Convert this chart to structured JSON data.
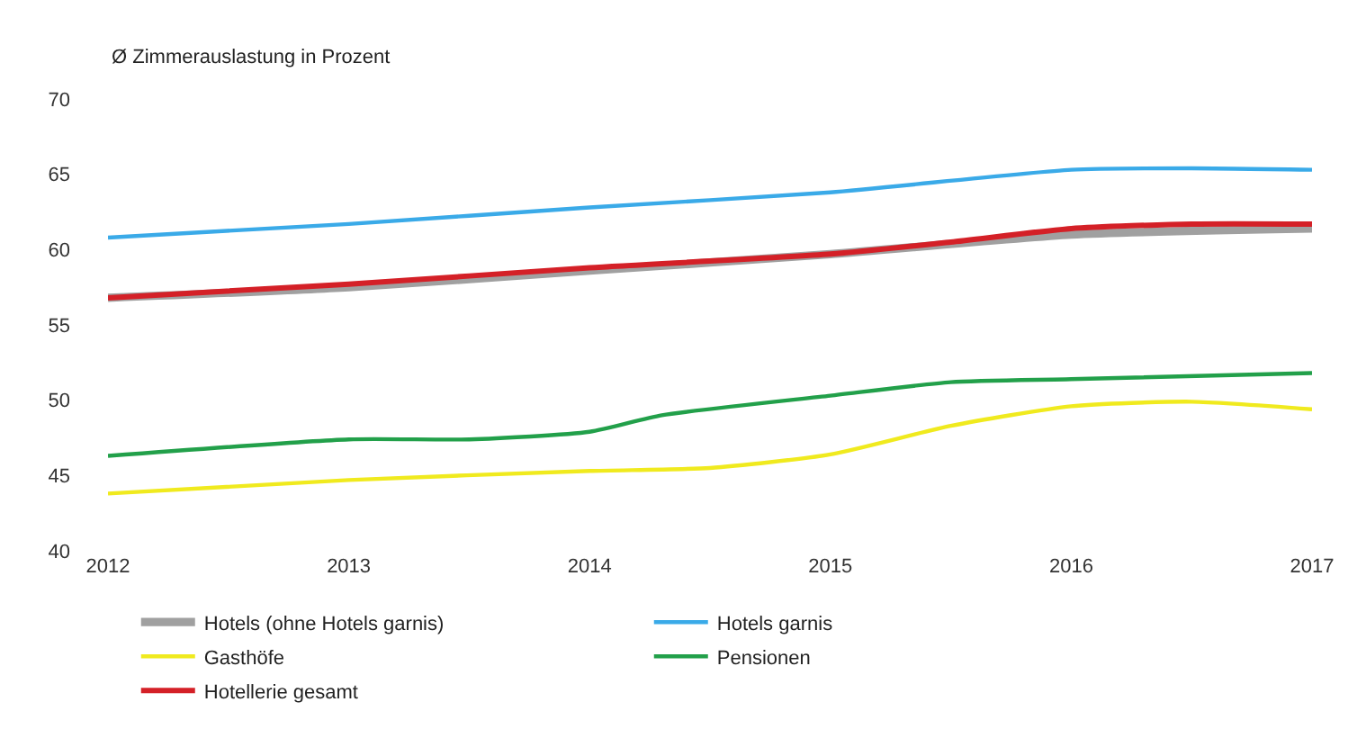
{
  "chart_data": {
    "type": "line",
    "ylabel": "Ø Zimmerauslastung in Prozent",
    "xlim": [
      2012,
      2017
    ],
    "xticks": [
      2012,
      2013,
      2014,
      2015,
      2016,
      2017
    ],
    "ylim": [
      40,
      70
    ],
    "yticks": [
      40,
      45,
      50,
      55,
      60,
      65,
      70
    ],
    "grid": false,
    "legend": "bottom",
    "marker": "none",
    "line_style": "solid",
    "series": [
      {
        "name": "Hotels (ohne Hotels garnis)",
        "color": "#a0a0a0",
        "x": [
          2012,
          2013,
          2014,
          2015,
          2016,
          2017
        ],
        "values": [
          56.8,
          57.5,
          58.6,
          59.7,
          61.0,
          61.4
        ]
      },
      {
        "name": "Hotels garnis",
        "color": "#3aaae8",
        "x": [
          2012,
          2013,
          2014,
          2015,
          2016,
          2016.5,
          2017
        ],
        "values": [
          60.8,
          61.7,
          62.8,
          63.8,
          65.3,
          65.4,
          65.3
        ]
      },
      {
        "name": "Gasthöfe",
        "color": "#f0ea1e",
        "x": [
          2012,
          2013,
          2014,
          2014.5,
          2015,
          2015.5,
          2016,
          2016.5,
          2017
        ],
        "values": [
          43.8,
          44.7,
          45.3,
          45.5,
          46.4,
          48.3,
          49.6,
          49.9,
          49.4
        ]
      },
      {
        "name": "Pensionen",
        "color": "#22a04a",
        "x": [
          2012,
          2013,
          2013.5,
          2014,
          2014.3,
          2015,
          2015.5,
          2016,
          2017
        ],
        "values": [
          46.3,
          47.4,
          47.4,
          47.9,
          49.0,
          50.3,
          51.2,
          51.4,
          51.8
        ]
      },
      {
        "name": "Hotellerie gesamt",
        "color": "#d42027",
        "x": [
          2012,
          2013,
          2014,
          2015,
          2015.5,
          2016,
          2016.5,
          2017
        ],
        "values": [
          56.8,
          57.7,
          58.8,
          59.7,
          60.5,
          61.4,
          61.7,
          61.7
        ]
      }
    ]
  }
}
